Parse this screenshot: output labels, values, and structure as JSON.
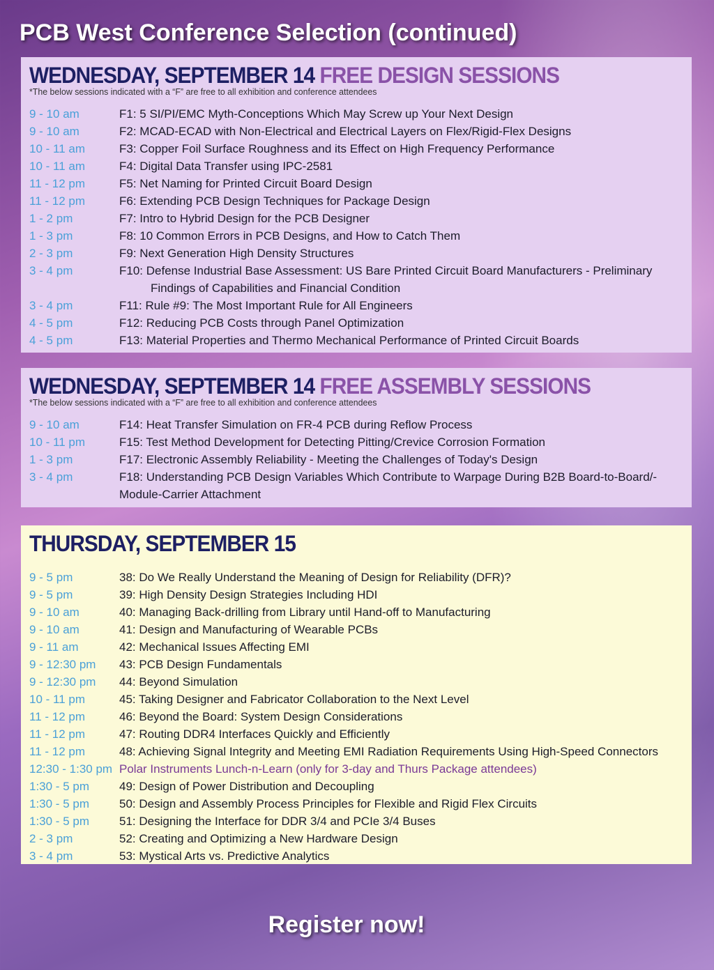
{
  "header": {
    "title": "PCB West Conference Selection (continued)"
  },
  "sections": [
    {
      "day": "WEDNESDAY, SEPTEMBER 14",
      "subtitle": "FREE DESIGN SESSIONS",
      "note": "*The below sessions indicated with a “F” are free to all exhibition and conference attendees",
      "rows": [
        {
          "time": "9 - 10 am",
          "session": "F1: 5 SI/PI/EMC Myth-Conceptions Which May Screw up Your Next Design"
        },
        {
          "time": "9 - 10 am",
          "session": "F2: MCAD-ECAD with Non-Electrical and Electrical Layers on Flex/Rigid-Flex Designs"
        },
        {
          "time": "10 - 11 am",
          "session": "F3: Copper Foil Surface Roughness and its Effect on High Frequency Performance"
        },
        {
          "time": "10 - 11 am",
          "session": "F4: Digital Data Transfer using IPC-2581"
        },
        {
          "time": "11 - 12 pm",
          "session": "F5: Net Naming for Printed Circuit Board Design"
        },
        {
          "time": "11 - 12 pm",
          "session": "F6: Extending PCB Design Techniques for Package Design"
        },
        {
          "time": "1 - 2 pm",
          "session": "F7: Intro to Hybrid Design for the PCB Designer"
        },
        {
          "time": "1 - 3 pm",
          "session": "F8: 10 Common Errors in PCB Designs, and How to Catch Them"
        },
        {
          "time": "2 - 3 pm",
          "session": "F9: Next Generation High Density Structures"
        },
        {
          "time": "3 - 4 pm",
          "session": "F10: Defense Industrial Base Assessment: US Bare Printed Circuit Board Manufacturers - Preliminary Findings of Capabilities and Financial Condition",
          "indent": true
        },
        {
          "time": "3 - 4 pm",
          "session": "F11: Rule #9: The Most Important Rule for All Engineers"
        },
        {
          "time": "4 - 5 pm",
          "session": "F12: Reducing PCB Costs through Panel Optimization"
        },
        {
          "time": "4 - 5 pm",
          "session": "F13: Material Properties and Thermo Mechanical Performance of Printed Circuit Boards"
        }
      ]
    },
    {
      "day": "WEDNESDAY, SEPTEMBER 14",
      "subtitle": "FREE ASSEMBLY SESSIONS",
      "note": "*The below sessions indicated with a “F” are free to all exhibition and conference attendees",
      "rows": [
        {
          "time": "9 - 10 am",
          "session": "F14: Heat Transfer Simulation on FR-4 PCB during Reflow Process"
        },
        {
          "time": "10 - 11 pm",
          "session": "F15: Test Method Development for Detecting Pitting/Crevice Corrosion Formation"
        },
        {
          "time": "1 - 3 pm",
          "session": "F17: Electronic Assembly Reliability - Meeting the Challenges of Today's Design"
        },
        {
          "time": "3 - 4 pm",
          "session": "F18: Understanding PCB Design Variables Which Contribute to Warpage During B2B Board-to-Board/-Module-Carrier Attachment"
        }
      ]
    },
    {
      "day": "THURSDAY, SEPTEMBER 15",
      "subtitle": "",
      "note": "",
      "rows": [
        {
          "time": "9 - 5 pm",
          "session": "38: Do We Really Understand the Meaning of Design for Reliability (DFR)?"
        },
        {
          "time": "9 - 5 pm",
          "session": "39: High Density Design Strategies Including HDI"
        },
        {
          "time": "9 - 10 am",
          "session": "40: Managing Back-drilling from Library until Hand-off to Manufacturing"
        },
        {
          "time": "9 - 10 am",
          "session": "41: Design and Manufacturing of Wearable PCBs"
        },
        {
          "time": "9 - 11 am",
          "session": "42: Mechanical Issues Affecting EMI"
        },
        {
          "time": "9 - 12:30 pm",
          "session": "43: PCB Design Fundamentals"
        },
        {
          "time": "9 - 12:30 pm",
          "session": "44: Beyond Simulation"
        },
        {
          "time": "10 - 11 pm",
          "session": "45: Taking Designer and Fabricator Collaboration to the Next Level"
        },
        {
          "time": "11 - 12 pm",
          "session": "46: Beyond the Board: System Design Considerations"
        },
        {
          "time": "11 - 12 pm",
          "session": "47: Routing DDR4 Interfaces Quickly and Efficiently"
        },
        {
          "time": "11 - 12 pm",
          "session": "48: Achieving Signal Integrity and Meeting EMI Radiation Requirements Using High-Speed Connectors"
        },
        {
          "time": "12:30 - 1:30 pm",
          "session": "Polar Instruments Lunch-n-Learn (only for 3-day and Thurs Package attendees)",
          "highlight": true
        },
        {
          "time": "1:30 - 5 pm",
          "session": "49: Design of Power Distribution and Decoupling"
        },
        {
          "time": "1:30 - 5 pm",
          "session": "50: Design and Assembly Process Principles for Flexible and Rigid Flex Circuits"
        },
        {
          "time": "1:30 - 5 pm",
          "session": "51: Designing the Interface for DDR 3/4 and PCIe 3/4 Buses"
        },
        {
          "time": "2 - 3 pm",
          "session": "52: Creating and Optimizing a New Hardware Design"
        },
        {
          "time": "3 - 4 pm",
          "session": "53: Mystical Arts vs. Predictive Analytics"
        }
      ]
    }
  ],
  "footer": {
    "cta": "Register now!"
  },
  "colors": {
    "time": "#4aa0d8",
    "title": "#1d1f63",
    "subtitle": "#8a52a8",
    "highlight": "#7a3a96"
  }
}
